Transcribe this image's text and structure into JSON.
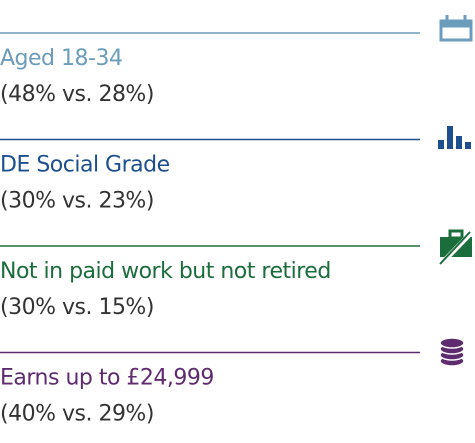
{
  "items": [
    {
      "label": "Aged 18-34",
      "stat": "(48% vs. 28%)",
      "color": "#6b9cbc"
    },
    {
      "label": "DE Social Grade",
      "stat": "(30% vs. 23%)",
      "color": "#1d4f8f"
    },
    {
      "label": "Not in paid work but not retired",
      "stat": "(30% vs. 15%)",
      "color": "#1b6d3b"
    },
    {
      "label": "Earns up to £24,999",
      "stat": "(40% vs. 29%)",
      "color": "#5e2b6e"
    }
  ]
}
